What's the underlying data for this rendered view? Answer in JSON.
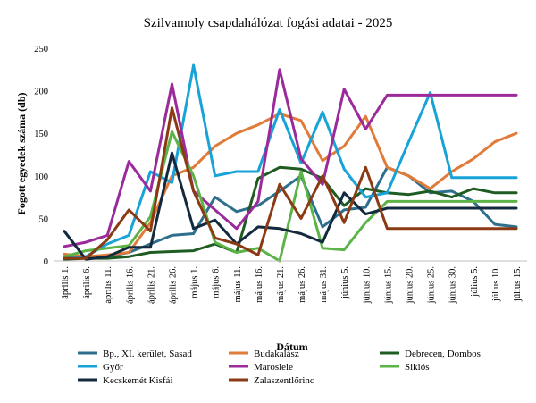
{
  "chart_data": {
    "type": "line",
    "title": "Szilvamoly csapdahálózat fogási adatai - 2025",
    "xlabel": "Dátum",
    "ylabel": "Fogott egyedek száma (db)",
    "ylim": [
      0,
      250
    ],
    "yticks": [
      0,
      50,
      100,
      150,
      200,
      250
    ],
    "grid": false,
    "legend_position": "bottom",
    "categories": [
      "április 1.",
      "április 6.",
      "április 11.",
      "április 16.",
      "április 21.",
      "április 26.",
      "május 1.",
      "május 6.",
      "május 11.",
      "május 16.",
      "május 21.",
      "május 26.",
      "május 31.",
      "június 5.",
      "június 10.",
      "június 15.",
      "június 20.",
      "június 25.",
      "június 30.",
      "július 5.",
      "július 10.",
      "július 15."
    ],
    "series": [
      {
        "name": "Bp., XI. kerület, Sasad",
        "color": "#2e6f8e",
        "values": [
          5,
          5,
          5,
          10,
          20,
          30,
          32,
          75,
          58,
          65,
          82,
          100,
          40,
          60,
          63,
          110,
          100,
          80,
          82,
          70,
          43,
          40
        ]
      },
      {
        "name": "Budakalász",
        "color": "#e07b39",
        "values": [
          8,
          5,
          7,
          10,
          45,
          100,
          110,
          135,
          150,
          160,
          173,
          165,
          118,
          135,
          170,
          110,
          100,
          85,
          105,
          120,
          140,
          150
        ]
      },
      {
        "name": "Debrecen, Dombos",
        "color": "#1e5c22",
        "values": [
          2,
          3,
          3,
          5,
          10,
          11,
          12,
          20,
          10,
          97,
          110,
          108,
          97,
          65,
          85,
          80,
          78,
          82,
          75,
          85,
          80,
          80
        ]
      },
      {
        "name": "Győr",
        "color": "#18a3d8",
        "values": [
          3,
          5,
          20,
          30,
          105,
          92,
          230,
          100,
          105,
          105,
          178,
          115,
          175,
          108,
          75,
          80,
          140,
          198,
          98,
          98,
          98,
          98
        ]
      },
      {
        "name": "Maroslele",
        "color": "#9b2a9b",
        "values": [
          17,
          22,
          30,
          117,
          82,
          208,
          82,
          60,
          38,
          70,
          225,
          120,
          90,
          202,
          155,
          195,
          195,
          195,
          195,
          195,
          195,
          195
        ]
      },
      {
        "name": "Siklós",
        "color": "#5cb347",
        "values": [
          5,
          12,
          15,
          18,
          52,
          152,
          100,
          22,
          10,
          15,
          0,
          105,
          15,
          13,
          45,
          70,
          70,
          70,
          70,
          70,
          70,
          70
        ]
      },
      {
        "name": "Kecskemét Kisfái",
        "color": "#13293d",
        "values": [
          35,
          2,
          5,
          16,
          16,
          127,
          38,
          48,
          20,
          40,
          38,
          32,
          22,
          80,
          55,
          62,
          62,
          62,
          62,
          62,
          62,
          62
        ]
      },
      {
        "name": "Zalaszentlőrinc",
        "color": "#8b3a14",
        "values": [
          3,
          3,
          25,
          60,
          35,
          180,
          82,
          27,
          20,
          7,
          90,
          50,
          100,
          45,
          110,
          38,
          38,
          38,
          38,
          38,
          38,
          38
        ]
      }
    ]
  }
}
